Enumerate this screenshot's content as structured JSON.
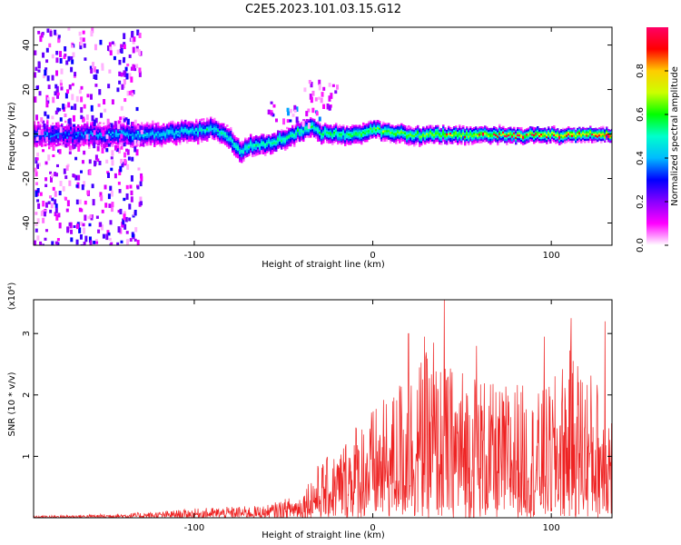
{
  "title": "C2E5.2023.101.03.15.G12",
  "chart_data": [
    {
      "type": "heatmap",
      "xlabel": "Height of straight line (km)",
      "ylabel": "Frequency (Hz)",
      "xlim": [
        -190,
        134
      ],
      "ylim": [
        -50,
        48
      ],
      "xticks": [
        -100,
        0,
        100
      ],
      "yticks": [
        -40,
        -20,
        0,
        20,
        40
      ],
      "colorbar": {
        "label": "Normalized spectral amplitude",
        "range": [
          0,
          1
        ],
        "ticks": [
          "0.0",
          "0.2",
          "0.4",
          "0.6",
          "0.8"
        ],
        "colormap": [
          "#ffffff",
          "#ff00ff",
          "#8800ff",
          "#0000ff",
          "#00bbff",
          "#00ffcc",
          "#00ff00",
          "#ccff00",
          "#ffcc00",
          "#ff0000",
          "#ff0066"
        ]
      },
      "ridge": {
        "x": [
          -190,
          -160,
          -130,
          -110,
          -90,
          -80,
          -75,
          -70,
          -60,
          -50,
          -40,
          -35,
          -30,
          -20,
          -10,
          0,
          20,
          50,
          80,
          110,
          134
        ],
        "y": [
          0,
          0,
          0,
          1,
          3,
          -2,
          -8,
          -5,
          -4,
          -2,
          2,
          4,
          1,
          0,
          0,
          2,
          0,
          0,
          0,
          0,
          0
        ]
      },
      "bursts": [
        {
          "x": [
            -190,
            -130
          ],
          "y": [
            -50,
            48
          ],
          "amplitude": 0.3
        },
        {
          "x": [
            -60,
            -30
          ],
          "y": [
            5,
            15
          ],
          "amplitude": 0.45
        },
        {
          "x": [
            -40,
            -20
          ],
          "y": [
            10,
            25
          ],
          "amplitude": 0.2
        }
      ]
    },
    {
      "type": "line",
      "xlabel": "Height of straight line (km)",
      "ylabel": "SNR (10 * v/v)",
      "multiplier": "(x10⁴)",
      "xlim": [
        -190,
        134
      ],
      "ylim": [
        0,
        3.55
      ],
      "xticks": [
        -100,
        0,
        100
      ],
      "yticks": [
        1,
        2,
        3
      ],
      "series": [
        {
          "color": "#ee2222",
          "envelope": {
            "x": [
              -190,
              -150,
              -120,
              -100,
              -80,
              -60,
              -50,
              -40,
              -35,
              -30,
              -20,
              -10,
              0,
              10,
              20,
              30,
              40,
              50,
              60,
              70,
              80,
              90,
              100,
              110,
              120,
              134
            ],
            "y": [
              0.03,
              0.06,
              0.1,
              0.15,
              0.18,
              0.2,
              0.3,
              0.4,
              0.7,
              0.9,
              1.1,
              1.6,
              1.8,
              2.0,
              2.5,
              2.7,
              2.5,
              2.5,
              2.4,
              2.1,
              2.3,
              2.0,
              2.2,
              2.8,
              2.5,
              2.0
            ]
          },
          "peaks": [
            {
              "x": 15,
              "y": 2.15
            },
            {
              "x": 20,
              "y": 3.0
            },
            {
              "x": 29,
              "y": 2.95
            },
            {
              "x": 34,
              "y": 2.85
            },
            {
              "x": 40,
              "y": 3.55
            },
            {
              "x": 58,
              "y": 2.8
            },
            {
              "x": 96,
              "y": 2.95
            },
            {
              "x": 111,
              "y": 3.25
            },
            {
              "x": 130,
              "y": 3.2
            }
          ]
        }
      ]
    }
  ]
}
